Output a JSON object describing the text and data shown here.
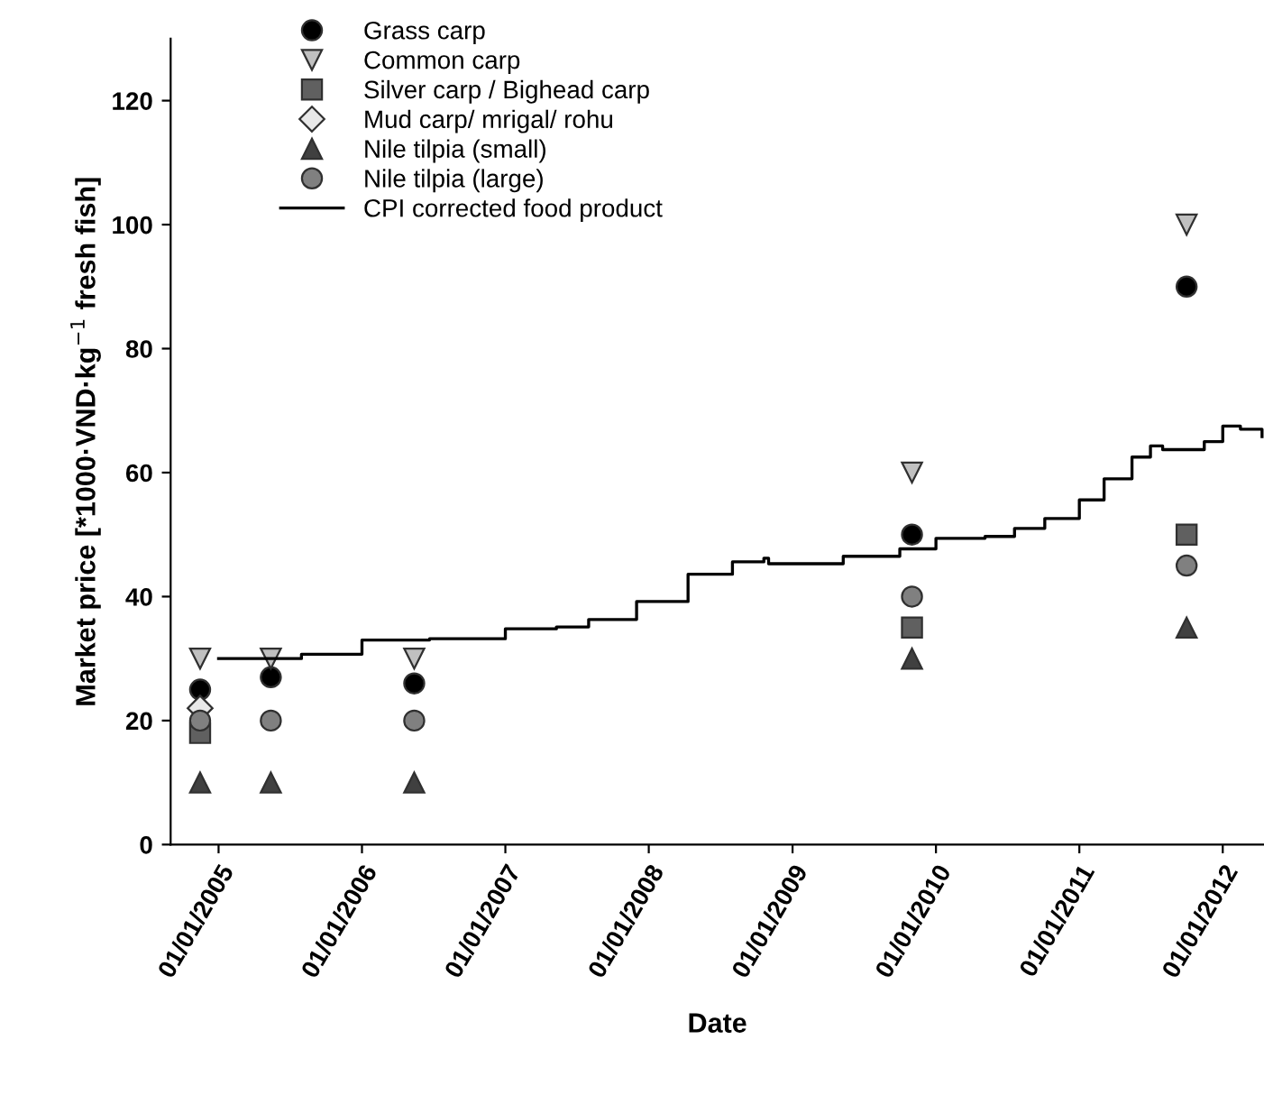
{
  "chart_data": {
    "type": "scatter",
    "xlabel": "Date",
    "ylabel": "Market price [*1000·VND·kg$^{−1}$ fresh fish]",
    "x": [
      "2004-11-15",
      "2005-05-14",
      "2006-05-14",
      "2009-11-01",
      "2011-10-01"
    ],
    "series": [
      {
        "name": "Grass carp",
        "color": "#000000",
        "marker": "circle",
        "values": [
          25,
          27,
          26,
          50,
          90
        ]
      },
      {
        "name": "Common carp",
        "color": "#c0c0c0",
        "marker": "triangle_down",
        "values": [
          30,
          30,
          30,
          60,
          100
        ]
      },
      {
        "name": "Silver carp / Bighead carp",
        "color": "#606060",
        "marker": "square",
        "values": [
          18,
          null,
          null,
          35,
          50
        ]
      },
      {
        "name": "Mud carp/ mrigal/ rohu",
        "color": "#e8e8e8",
        "marker": "diamond",
        "values": [
          22,
          null,
          null,
          null,
          null
        ]
      },
      {
        "name": "Nile tilpia (small)",
        "color": "#404040",
        "marker": "triangle",
        "values": [
          10,
          10,
          10,
          30,
          35
        ]
      },
      {
        "name": "Nile tilpia (large)",
        "color": "#808080",
        "marker": "circle",
        "values": [
          20,
          20,
          20,
          40,
          45
        ]
      },
      {
        "name": "CPI corrected food product",
        "type": "step",
        "color": "#000000",
        "marker": "none",
        "line_style": "solid",
        "x": [
          "2005-01-01",
          "2005-07-31",
          "2006-01-01",
          "2006-06-22",
          "2007-01-01",
          "2007-05-11",
          "2007-08-01",
          "2007-12-01",
          "2008-04-10",
          "2008-08-01",
          "2008-10-20",
          "2008-11-01",
          "2009-05-10",
          "2009-10-01",
          "2010-01-01",
          "2010-05-06",
          "2010-07-20",
          "2010-10-05",
          "2011-01-01",
          "2011-03-05",
          "2011-05-15",
          "2011-07-01",
          "2011-08-01",
          "2011-11-15",
          "2012-01-01",
          "2012-02-15",
          "2012-04-10"
        ],
        "values": [
          30,
          30.7,
          33,
          33.2,
          34.8,
          35.1,
          36.3,
          39.2,
          43.6,
          45.6,
          46.2,
          45.3,
          46.5,
          47.7,
          49.4,
          49.7,
          51,
          52.6,
          55.6,
          59,
          62.5,
          64.3,
          63.7,
          65,
          67.5,
          67,
          65.8
        ]
      }
    ],
    "xlim": [
      "2004-09-01",
      "2012-04-15"
    ],
    "xticks": [
      {
        "value": "2005-01-01",
        "label": "01/01/2005"
      },
      {
        "value": "2006-01-01",
        "label": "01/01/2006"
      },
      {
        "value": "2007-01-01",
        "label": "01/01/2007"
      },
      {
        "value": "2008-01-01",
        "label": "01/01/2008"
      },
      {
        "value": "2009-01-01",
        "label": "01/01/2009"
      },
      {
        "value": "2010-01-01",
        "label": "01/01/2010"
      },
      {
        "value": "2011-01-01",
        "label": "01/01/2011"
      },
      {
        "value": "2012-01-01",
        "label": "01/01/2012"
      }
    ],
    "ylim": [
      0,
      130
    ],
    "yticks": [
      0,
      20,
      40,
      60,
      80,
      100,
      120
    ],
    "grid": false,
    "legend": "top left"
  }
}
